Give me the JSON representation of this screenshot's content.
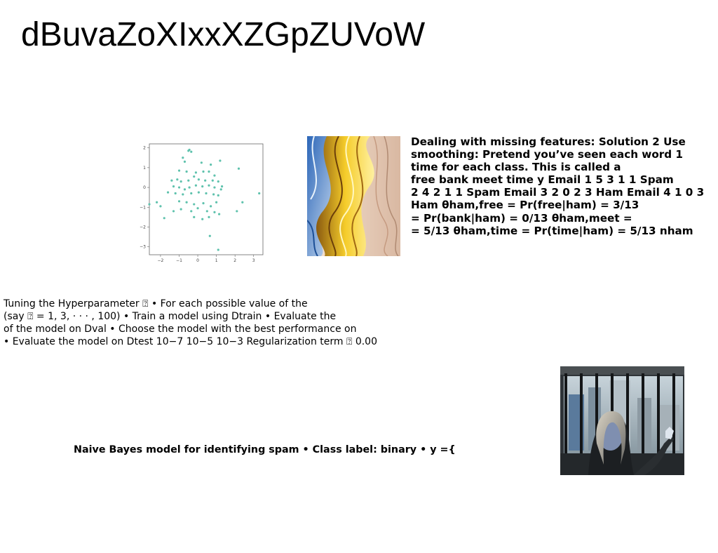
{
  "title": "dBuvaZoXIxxXZGpZUVoW",
  "scatter_plot": {
    "type": "scatter",
    "x_ticks": [
      "−2",
      "−1",
      "0",
      "1",
      "2",
      "3"
    ],
    "y_ticks": [
      "2",
      "1",
      "0",
      "−1",
      "−2",
      "−3"
    ],
    "xlim": [
      -2.6,
      3.5
    ],
    "ylim": [
      -3.4,
      2.2
    ],
    "color": "#5fc2ad",
    "points": [
      [
        -0.5,
        1.85
      ],
      [
        -0.35,
        1.8
      ],
      [
        -0.45,
        1.9
      ],
      [
        -0.8,
        1.5
      ],
      [
        -0.7,
        1.3
      ],
      [
        0.2,
        1.25
      ],
      [
        1.2,
        1.35
      ],
      [
        0.7,
        1.15
      ],
      [
        2.2,
        0.95
      ],
      [
        -1.0,
        0.85
      ],
      [
        -0.6,
        0.8
      ],
      [
        -0.1,
        0.75
      ],
      [
        0.3,
        0.8
      ],
      [
        0.6,
        0.8
      ],
      [
        0.9,
        0.6
      ],
      [
        -1.4,
        0.35
      ],
      [
        -1.1,
        0.4
      ],
      [
        -0.9,
        0.3
      ],
      [
        -0.5,
        0.35
      ],
      [
        -0.2,
        0.55
      ],
      [
        0.05,
        0.4
      ],
      [
        0.4,
        0.35
      ],
      [
        0.8,
        0.35
      ],
      [
        1.1,
        0.3
      ],
      [
        -1.3,
        0.05
      ],
      [
        -1.0,
        0.0
      ],
      [
        -0.7,
        -0.1
      ],
      [
        -0.45,
        0.0
      ],
      [
        -0.1,
        0.1
      ],
      [
        0.25,
        0.05
      ],
      [
        0.6,
        0.1
      ],
      [
        0.9,
        0.0
      ],
      [
        1.3,
        0.05
      ],
      [
        1.25,
        -0.1
      ],
      [
        -1.6,
        -0.25
      ],
      [
        -1.2,
        -0.3
      ],
      [
        -0.8,
        -0.35
      ],
      [
        -0.35,
        -0.3
      ],
      [
        0.05,
        -0.25
      ],
      [
        0.45,
        -0.3
      ],
      [
        0.85,
        -0.35
      ],
      [
        1.1,
        -0.4
      ],
      [
        3.3,
        -0.3
      ],
      [
        -2.6,
        -0.85
      ],
      [
        -2.2,
        -0.75
      ],
      [
        -2.0,
        -0.95
      ],
      [
        -1.0,
        -0.7
      ],
      [
        -0.6,
        -0.75
      ],
      [
        -0.2,
        -0.85
      ],
      [
        0.3,
        -0.8
      ],
      [
        0.7,
        -0.95
      ],
      [
        1.0,
        -0.75
      ],
      [
        2.4,
        -0.75
      ],
      [
        -1.3,
        -1.2
      ],
      [
        -0.9,
        -1.1
      ],
      [
        -0.35,
        -1.2
      ],
      [
        0.0,
        -1.05
      ],
      [
        0.5,
        -1.2
      ],
      [
        0.9,
        -1.25
      ],
      [
        1.15,
        -1.35
      ],
      [
        2.1,
        -1.2
      ],
      [
        -1.8,
        -1.55
      ],
      [
        -0.2,
        -1.5
      ],
      [
        0.25,
        -1.6
      ],
      [
        0.6,
        -1.5
      ],
      [
        0.65,
        -2.45
      ],
      [
        1.1,
        -3.15
      ]
    ]
  },
  "images": {
    "abstract_art": "abstract-wavy-art-image",
    "photo": "woman-by-window-photo"
  },
  "ml_slide": {
    "lines": [
      "Dealing with missing features: Solution 2 Use",
      "smoothing: Pretend you’ve seen each word 1",
      "time for each class. This is called a",
      "free bank meet time y Email 1 5 3 1 1 Spam",
      "2 4 2 1 1 Spam Email 3 2 0 2 3 Ham Email 4 1 0 3",
      "Ham θham,free = Pr(free|ham) = 3/13",
      "= Pr(bank|ham) = 0/13 θham,meet =",
      "= 5/13 θham,time = Pr(time|ham) = 5/13 nham"
    ]
  },
  "tuning": {
    "lines": [
      "Tuning the Hyperparameter ⍰ • For each possible value of the",
      "(say ⍰ = 1, 3, · · · , 100) • Train a model using Dtrain • Evaluate the",
      "of the model on Dval • Choose the model with the best performance on",
      "• Evaluate the model on Dtest 10−7 10−5 10−3 Regularization term ⍰ 0.00"
    ]
  },
  "naive_bayes": "Naive Bayes model for identifying spam • Class label: binary • y ={"
}
